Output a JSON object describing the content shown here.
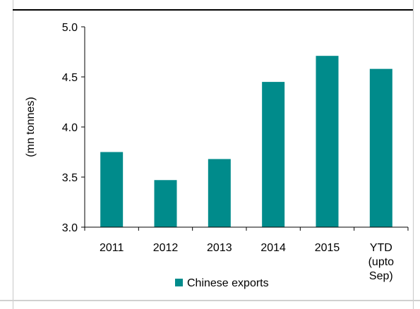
{
  "chart_data": {
    "type": "bar",
    "title": "",
    "xlabel": "",
    "ylabel": "(mn tonnes)",
    "categories": [
      "2011",
      "2012",
      "2013",
      "2014",
      "2015",
      "YTD (upto Sep)"
    ],
    "category_lines": [
      [
        "2011"
      ],
      [
        "2012"
      ],
      [
        "2013"
      ],
      [
        "2014"
      ],
      [
        "2015"
      ],
      [
        "YTD",
        "(upto",
        "Sep)"
      ]
    ],
    "series": [
      {
        "name": "Chinese exports",
        "values": [
          3.75,
          3.47,
          3.68,
          4.45,
          4.71,
          4.58
        ]
      }
    ],
    "ylim": [
      3.0,
      5.0
    ],
    "yticks": [
      "3.0",
      "3.5",
      "4.0",
      "4.5",
      "5.0"
    ],
    "grid": false,
    "legend": "bottom",
    "bar_color": "#008B8B"
  }
}
